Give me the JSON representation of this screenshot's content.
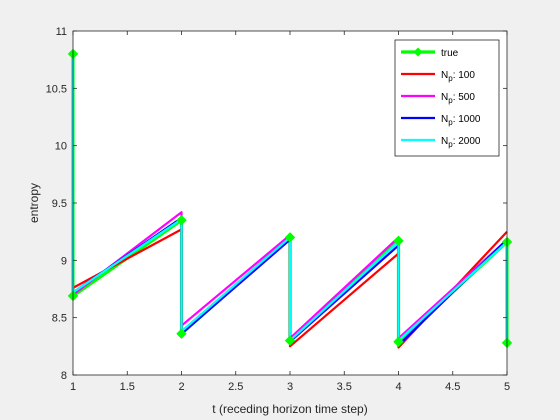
{
  "chart_data": {
    "type": "line",
    "xlabel": "t (receding horizon time step)",
    "ylabel": "entropy",
    "xlim": [
      1,
      5
    ],
    "ylim": [
      8,
      11
    ],
    "xticks": [
      1,
      1.5,
      2,
      2.5,
      3,
      3.5,
      4,
      4.5,
      5
    ],
    "yticks": [
      8,
      8.5,
      9,
      9.5,
      10,
      10.5,
      11
    ],
    "grid": false,
    "legend_position": "top-right",
    "series": [
      {
        "name": "true",
        "color": "#00ff00",
        "marker": "diamond",
        "x": [
          1,
          1,
          2,
          2,
          3,
          3,
          4,
          4,
          5,
          5
        ],
        "y": [
          10.8,
          8.69,
          9.35,
          8.36,
          9.2,
          8.3,
          9.17,
          8.29,
          9.16,
          8.28
        ]
      },
      {
        "name": "N_p: 100",
        "color": "#ff0000",
        "x": [
          1,
          2,
          2,
          3,
          3,
          4,
          4,
          5
        ],
        "y": [
          8.76,
          9.27,
          8.38,
          9.2,
          8.25,
          9.06,
          8.24,
          9.25
        ]
      },
      {
        "name": "N_p: 500",
        "color": "#ff00ff",
        "x": [
          1,
          2,
          2,
          3,
          3,
          4,
          4,
          5
        ],
        "y": [
          8.7,
          9.42,
          8.43,
          9.22,
          8.32,
          9.2,
          8.32,
          9.18
        ]
      },
      {
        "name": "N_p: 1000",
        "color": "#0000ff",
        "x": [
          1,
          2,
          2,
          3,
          3,
          4,
          4,
          5
        ],
        "y": [
          8.72,
          9.37,
          8.36,
          9.18,
          8.29,
          9.13,
          8.26,
          9.18
        ]
      },
      {
        "name": "N_p: 2000",
        "color": "#00ffff",
        "x": [
          1,
          1,
          2,
          2,
          3,
          3,
          4,
          4,
          5,
          5
        ],
        "y": [
          10.8,
          8.72,
          9.36,
          8.38,
          9.2,
          8.3,
          9.16,
          8.3,
          9.16,
          8.28
        ]
      }
    ],
    "legend": [
      {
        "label": "true",
        "base": "true",
        "sub": "",
        "rest": ""
      },
      {
        "label": "N_p: 100",
        "base": "N",
        "sub": "p",
        "rest": ": 100"
      },
      {
        "label": "N_p: 500",
        "base": "N",
        "sub": "p",
        "rest": ": 500"
      },
      {
        "label": "N_p: 1000",
        "base": "N",
        "sub": "p",
        "rest": ": 1000"
      },
      {
        "label": "N_p: 2000",
        "base": "N",
        "sub": "p",
        "rest": ": 2000"
      }
    ]
  }
}
